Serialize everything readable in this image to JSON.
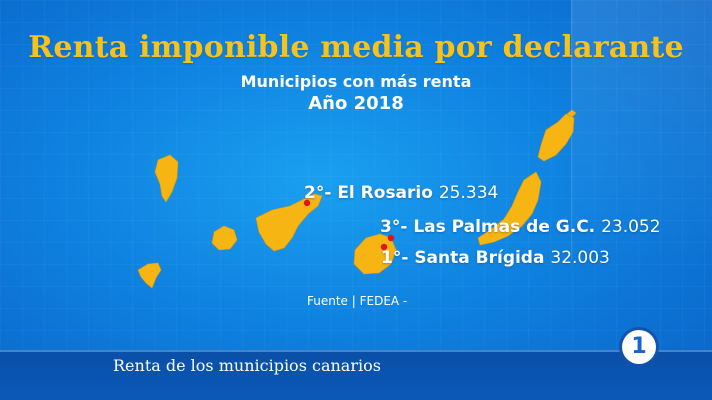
{
  "header": {
    "title": "Renta imponible media por declarante",
    "subtitle": "Municipios con más renta",
    "year": "Año 2018"
  },
  "rankings": [
    {
      "rank": "1°- ",
      "municipality": "Santa Brígida",
      "value": "32.003"
    },
    {
      "rank": "2°- ",
      "municipality": "El Rosario",
      "value": "25.334"
    },
    {
      "rank": "3°- ",
      "municipality": "Las Palmas de G.C.",
      "value": "23.052"
    }
  ],
  "source": "Fuente | FEDEA -",
  "footer": {
    "caption": "Renta de los municipios canarios",
    "channel_logo": "1"
  },
  "colors": {
    "island": "#f7b514",
    "marker": "#e0141b",
    "title": "#f7c21b",
    "background": "#0f82e0"
  }
}
